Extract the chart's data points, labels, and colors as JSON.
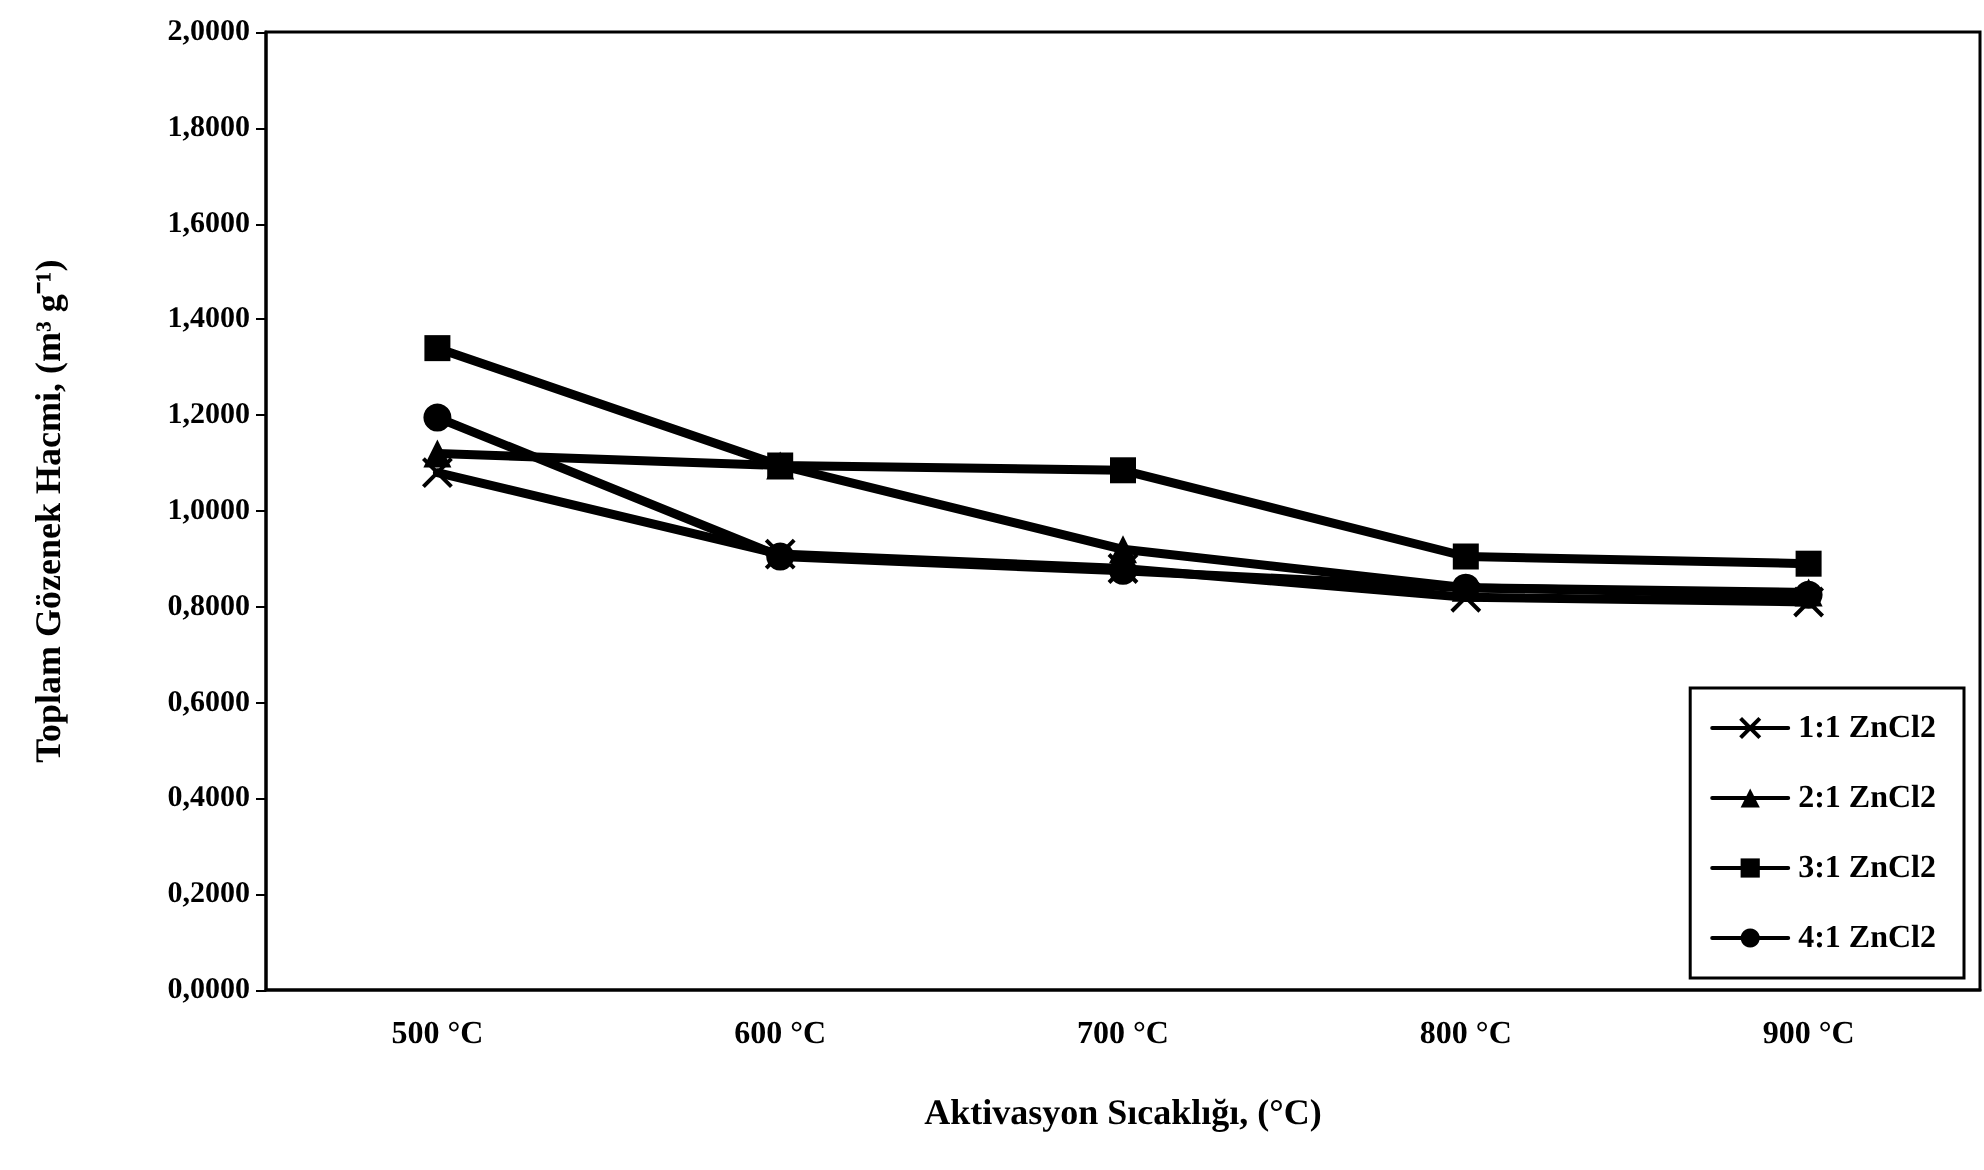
{
  "chart_data": {
    "type": "line",
    "xlabel": "Aktivasyon Sıcaklığı, (°C)",
    "ylabel": "Toplam Gözenek Hacmi, (m³ g⁻¹)",
    "categories": [
      "500 °C",
      "600 °C",
      "700 °C",
      "800 °C",
      "900 °C"
    ],
    "series": [
      {
        "name": "1:1 ZnCl2",
        "color": "#000000",
        "marker": "cross",
        "values": [
          1.08,
          0.91,
          0.88,
          0.82,
          0.81
        ]
      },
      {
        "name": "2:1 ZnCl2",
        "color": "#000000",
        "marker": "triangle",
        "values": [
          1.12,
          1.095,
          0.92,
          0.84,
          0.83
        ]
      },
      {
        "name": "3:1 ZnCl2",
        "color": "#000000",
        "marker": "square",
        "values": [
          1.34,
          1.095,
          1.085,
          0.905,
          0.89
        ]
      },
      {
        "name": "4:1 ZnCl2",
        "color": "#000000",
        "marker": "circle",
        "values": [
          1.195,
          0.905,
          0.875,
          0.84,
          0.825
        ]
      }
    ],
    "ylim": [
      0,
      2
    ],
    "yticks": [
      {
        "value": 0,
        "label": "0,0000"
      },
      {
        "value": 0.2,
        "label": "0,2000"
      },
      {
        "value": 0.4,
        "label": "0,4000"
      },
      {
        "value": 0.6,
        "label": "0,6000"
      },
      {
        "value": 0.8,
        "label": "0,8000"
      },
      {
        "value": 1,
        "label": "1,0000"
      },
      {
        "value": 1.2,
        "label": "1,2000"
      },
      {
        "value": 1.4,
        "label": "1,4000"
      },
      {
        "value": 1.6,
        "label": "1,6000"
      },
      {
        "value": 1.8,
        "label": "1,8000"
      },
      {
        "value": 2,
        "label": "2,0000"
      }
    ],
    "grid": false,
    "legend": "bottom right",
    "line_style": "solid"
  }
}
